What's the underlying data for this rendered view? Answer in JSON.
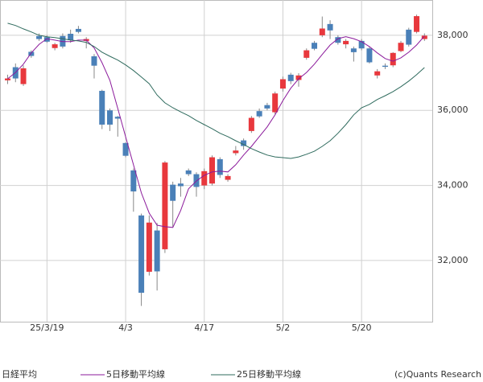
{
  "chart_data": {
    "type": "candlestick",
    "categories": [
      null,
      null,
      null,
      null,
      null,
      "25/3/19",
      null,
      null,
      null,
      null,
      null,
      null,
      null,
      null,
      null,
      "4/3",
      null,
      null,
      null,
      null,
      null,
      null,
      null,
      null,
      null,
      "4/17",
      null,
      null,
      null,
      null,
      null,
      null,
      null,
      null,
      null,
      "5/2",
      null,
      null,
      null,
      null,
      null,
      null,
      null,
      null,
      null,
      "5/20",
      null,
      null,
      null,
      null,
      null,
      null,
      null,
      null
    ],
    "ohlc": {
      "name": "日経平均",
      "up_color": "#e8383d",
      "down_color": "#4a80b8",
      "wick_color": "#888888",
      "open": [
        36800,
        37150,
        36700,
        37560,
        37980,
        37950,
        37660,
        37980,
        38040,
        38170,
        37850,
        37440,
        36520,
        36000,
        35830,
        35130,
        34400,
        33200,
        31700,
        32800,
        32300,
        34020,
        34050,
        34400,
        34300,
        34000,
        34050,
        34700,
        34150,
        34860,
        35200,
        35450,
        35980,
        36140,
        35950,
        36580,
        36950,
        36810,
        37400,
        37800,
        38000,
        38300,
        37950,
        37760,
        37650,
        37850,
        37650,
        36930,
        37190,
        37200,
        37580,
        38150,
        38090,
        37900
      ],
      "high": [
        36950,
        37250,
        37200,
        37600,
        38050,
        38000,
        37800,
        38050,
        38150,
        38250,
        37950,
        37500,
        36550,
        36050,
        35850,
        35150,
        34450,
        33250,
        33200,
        33000,
        34650,
        34100,
        34200,
        34450,
        34350,
        34450,
        34800,
        34750,
        34300,
        35050,
        35250,
        35850,
        36050,
        36200,
        36500,
        36900,
        37000,
        36990,
        37650,
        37850,
        38500,
        38400,
        38000,
        37900,
        37700,
        37900,
        37700,
        37100,
        37250,
        37550,
        37850,
        38200,
        38550,
        38050
      ],
      "low": [
        36700,
        36750,
        36650,
        37400,
        37850,
        37800,
        37600,
        37650,
        37800,
        38050,
        37650,
        36850,
        35500,
        35450,
        35300,
        34750,
        33300,
        30790,
        31600,
        31200,
        32200,
        32900,
        33700,
        34250,
        33700,
        33900,
        34000,
        34200,
        34100,
        34800,
        34950,
        35400,
        35800,
        36000,
        35900,
        36500,
        36700,
        36630,
        37350,
        37600,
        37950,
        37900,
        37750,
        37650,
        37300,
        37600,
        37250,
        36850,
        37100,
        37150,
        37550,
        37700,
        38050,
        37850
      ],
      "close": [
        36850,
        36850,
        37120,
        37450,
        37900,
        37830,
        37760,
        37700,
        37870,
        38090,
        37900,
        37190,
        35620,
        35620,
        35780,
        34790,
        33840,
        31140,
        33010,
        31710,
        34610,
        33590,
        33980,
        34300,
        33960,
        34380,
        34750,
        34280,
        34250,
        34930,
        35050,
        35800,
        35840,
        36050,
        36450,
        36830,
        36780,
        36930,
        37600,
        37640,
        38180,
        38130,
        37800,
        37850,
        37550,
        37650,
        37280,
        37040,
        37160,
        37530,
        37800,
        37750,
        38510,
        37990
      ]
    },
    "series": [
      {
        "name": "5日移動平均線",
        "color": "#8b1a9b",
        "values": [
          36840,
          37010,
          37230,
          37530,
          37760,
          37910,
          37870,
          37830,
          37830,
          37870,
          37870,
          37660,
          37270,
          36800,
          36050,
          35300,
          34550,
          33800,
          33260,
          32940,
          32900,
          32880,
          33330,
          33910,
          34120,
          34270,
          34360,
          34380,
          34360,
          34550,
          34810,
          35040,
          35300,
          35560,
          35880,
          36260,
          36590,
          36840,
          37010,
          37230,
          37490,
          37740,
          37910,
          37960,
          37910,
          37830,
          37700,
          37530,
          37380,
          37310,
          37400,
          37550,
          37740,
          37980
        ]
      },
      {
        "name": "25日移動平均線",
        "color": "#2f6b5e",
        "values": [
          38320,
          38260,
          38170,
          38090,
          38000,
          37960,
          37940,
          37910,
          37870,
          37850,
          37810,
          37700,
          37550,
          37440,
          37340,
          37210,
          37060,
          36890,
          36710,
          36410,
          36200,
          36070,
          35960,
          35860,
          35730,
          35620,
          35510,
          35390,
          35300,
          35190,
          35090,
          34980,
          34890,
          34810,
          34760,
          34740,
          34720,
          34760,
          34830,
          34910,
          35040,
          35190,
          35390,
          35620,
          35880,
          36070,
          36160,
          36290,
          36390,
          36500,
          36630,
          36780,
          36950,
          37140
        ]
      }
    ],
    "ylim": [
      30370,
      38940
    ],
    "yticks": [
      {
        "value": 32000,
        "label": "32,000"
      },
      {
        "value": 34000,
        "label": "34,000"
      },
      {
        "value": 36000,
        "label": "36,000"
      },
      {
        "value": 38000,
        "label": "38,000"
      }
    ],
    "grid": true,
    "credit": "(c)Quants Research"
  }
}
